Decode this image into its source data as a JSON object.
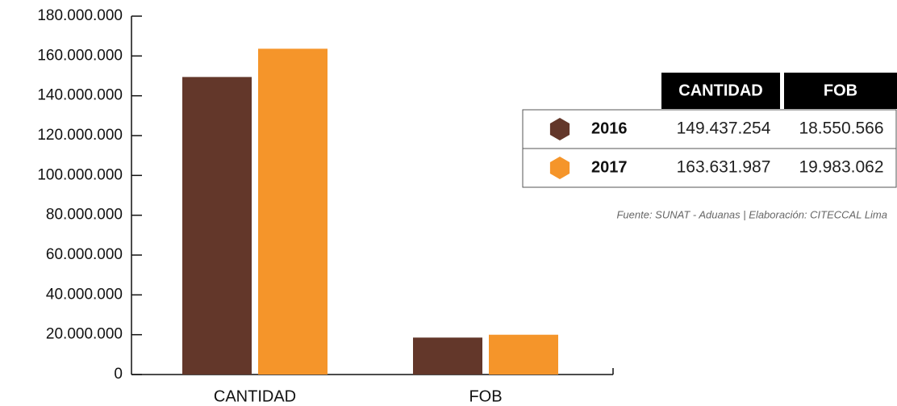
{
  "chart_data": {
    "type": "bar",
    "categories": [
      "CANTIDAD",
      "FOB"
    ],
    "series": [
      {
        "name": "2016",
        "color": "#63372a",
        "values": [
          149437254,
          18550566
        ],
        "value_labels": [
          "149.437.254",
          "18.550.566"
        ]
      },
      {
        "name": "2017",
        "color": "#f5952a",
        "values": [
          163631987,
          19983062
        ],
        "value_labels": [
          "163.631.987",
          "19.983.062"
        ]
      }
    ],
    "ylim": [
      0,
      180000000
    ],
    "yticks": [
      0,
      {
        "value": 20000000,
        "label": "20.000.000"
      },
      {
        "value": 40000000,
        "label": "40.000.000"
      },
      {
        "value": 60000000,
        "label": "60.000.000"
      },
      {
        "value": 80000000,
        "label": "80.000.000"
      },
      {
        "value": 100000000,
        "label": "100.000.000"
      },
      {
        "value": 120000000,
        "label": "120.000.000"
      },
      {
        "value": 140000000,
        "label": "140.000.000"
      },
      {
        "value": 160000000,
        "label": "160.000.000"
      },
      {
        "value": 180000000,
        "label": "180.000.000"
      }
    ],
    "source": "Fuente: SUNAT - Aduanas | Elaboración: CITECCAL Lima"
  }
}
